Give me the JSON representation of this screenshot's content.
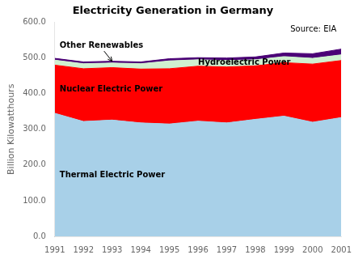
{
  "chart_data": {
    "type": "area",
    "title": "Electricity Generation in Germany",
    "y_label": "Billion Kilowatthours",
    "annotations": [
      "Source: EIA"
    ],
    "stacked": true,
    "grid": false,
    "x": [
      1991,
      1992,
      1993,
      1994,
      1995,
      1996,
      1997,
      1998,
      1999,
      2000,
      2001
    ],
    "series": [
      {
        "name": "Thermal Electric Power",
        "color": "#A8D0E8",
        "values": [
          345,
          322,
          326,
          318,
          315,
          323,
          318,
          328,
          337,
          320,
          333
        ]
      },
      {
        "name": "Nuclear Electric Power",
        "color": "#FF0000",
        "values": [
          135,
          148,
          147,
          151,
          155,
          154,
          157,
          150,
          150,
          163,
          160
        ]
      },
      {
        "name": "Hydroelectric Power",
        "color": "#D0F0D0",
        "values": [
          14,
          14,
          13,
          15,
          22,
          18,
          18,
          17,
          17,
          16,
          16
        ]
      },
      {
        "name": "Other Renewables",
        "color": "#4B0076",
        "values": [
          5,
          5,
          5,
          5,
          6,
          6,
          7,
          8,
          10,
          13,
          16
        ]
      }
    ],
    "xlim": [
      1991,
      2001
    ],
    "xticks": [
      1991,
      1992,
      1993,
      1994,
      1995,
      1996,
      1997,
      1998,
      1999,
      2000,
      2001
    ],
    "ylim": [
      0,
      600
    ],
    "yticks": [
      {
        "value": 0,
        "label": "0.0"
      },
      {
        "value": 100,
        "label": "100.0"
      },
      {
        "value": 200,
        "label": "200.0"
      },
      {
        "value": 300,
        "label": "300.0"
      },
      {
        "value": 400,
        "label": "400.0"
      },
      {
        "value": 500,
        "label": "500.0"
      },
      {
        "value": 600,
        "label": "600.0"
      }
    ]
  }
}
